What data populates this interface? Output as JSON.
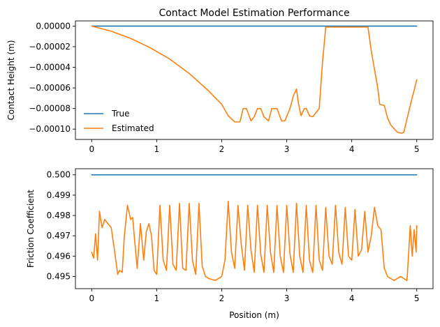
{
  "figure": {
    "title": "Contact Model Estimation Performance"
  },
  "chart_data": [
    {
      "type": "line",
      "title": "Contact Model Estimation Performance",
      "xlabel": "",
      "ylabel": "Contact Height (m)",
      "xlim": [
        -0.25,
        5.25
      ],
      "ylim": [
        -0.00011,
        5e-06
      ],
      "xticks": [
        0,
        1,
        2,
        3,
        4,
        5
      ],
      "xtick_labels": [
        "0",
        "1",
        "2",
        "3",
        "4",
        "5"
      ],
      "yticks": [
        0,
        -2e-05,
        -4e-05,
        -6e-05,
        -8e-05,
        -0.0001
      ],
      "ytick_labels": [
        "0.00000",
        "−0.00002",
        "−0.00004",
        "−0.00006",
        "−0.00008",
        "−0.00010"
      ],
      "grid": false,
      "legend": "lower-left",
      "series": [
        {
          "name": "True",
          "color": "#1f77b4",
          "x": [
            0,
            5
          ],
          "y": [
            0,
            0
          ]
        },
        {
          "name": "Estimated",
          "color": "#ff7f0e",
          "x": [
            0.0,
            0.3,
            0.6,
            0.9,
            1.2,
            1.5,
            1.8,
            2.0,
            2.1,
            2.2,
            2.28,
            2.33,
            2.38,
            2.45,
            2.5,
            2.55,
            2.6,
            2.65,
            2.72,
            2.77,
            2.8,
            2.85,
            2.92,
            2.97,
            3.05,
            3.1,
            3.15,
            3.18,
            3.22,
            3.27,
            3.3,
            3.35,
            3.4,
            3.5,
            3.55,
            3.6,
            3.8,
            4.0,
            4.1,
            4.25,
            4.3,
            4.4,
            4.43,
            4.5,
            4.55,
            4.6,
            4.7,
            4.77,
            4.8,
            4.9,
            5.0
          ],
          "y": [
            0,
            -5e-06,
            -1.2e-05,
            -2.1e-05,
            -3.2e-05,
            -4.6e-05,
            -6.3e-05,
            -7.6e-05,
            -8.7e-05,
            -9.3e-05,
            -9.3e-05,
            -8e-05,
            -8e-05,
            -9.2e-05,
            -8.8e-05,
            -8e-05,
            -8e-05,
            -8.8e-05,
            -9.2e-05,
            -8e-05,
            -8e-05,
            -8e-05,
            -9.2e-05,
            -9.2e-05,
            -8e-05,
            -6.8e-05,
            -6.1e-05,
            -7.5e-05,
            -8.7e-05,
            -8e-05,
            -8e-05,
            -8.7e-05,
            -8.8e-05,
            -8e-05,
            -3.5e-05,
            -1e-06,
            -1e-06,
            -1e-06,
            -1e-06,
            -1e-06,
            -2.4e-05,
            -6e-05,
            -7.6e-05,
            -7.7e-05,
            -8.9e-05,
            -9.6e-05,
            -0.000103,
            -0.000104,
            -0.000103,
            -7.7e-05,
            -5.2e-05
          ]
        }
      ]
    },
    {
      "type": "line",
      "title": "",
      "xlabel": "Position (m)",
      "ylabel": "Friction Coefficient",
      "xlim": [
        -0.25,
        5.25
      ],
      "ylim": [
        0.4944,
        0.5003
      ],
      "xticks": [
        0,
        1,
        2,
        3,
        4,
        5
      ],
      "xtick_labels": [
        "0",
        "1",
        "2",
        "3",
        "4",
        "5"
      ],
      "yticks": [
        0.495,
        0.496,
        0.497,
        0.498,
        0.499,
        0.5
      ],
      "ytick_labels": [
        "0.495",
        "0.496",
        "0.497",
        "0.498",
        "0.499",
        "0.500"
      ],
      "grid": false,
      "legend": "none",
      "series": [
        {
          "name": "True",
          "color": "#1f77b4",
          "x": [
            0,
            5
          ],
          "y": [
            0.5,
            0.5
          ]
        },
        {
          "name": "Estimated",
          "color": "#ff7f0e",
          "x": [
            0.0,
            0.03,
            0.06,
            0.09,
            0.12,
            0.16,
            0.2,
            0.25,
            0.3,
            0.35,
            0.4,
            0.43,
            0.47,
            0.5,
            0.55,
            0.6,
            0.63,
            0.66,
            0.7,
            0.75,
            0.8,
            0.84,
            0.88,
            0.92,
            0.96,
            1.0,
            1.05,
            1.1,
            1.15,
            1.2,
            1.25,
            1.3,
            1.35,
            1.4,
            1.45,
            1.5,
            1.55,
            1.6,
            1.65,
            1.7,
            1.75,
            1.8,
            1.9,
            2.0,
            2.05,
            2.1,
            2.15,
            2.2,
            2.25,
            2.3,
            2.35,
            2.4,
            2.45,
            2.5,
            2.55,
            2.6,
            2.65,
            2.7,
            2.75,
            2.8,
            2.85,
            2.9,
            2.95,
            3.0,
            3.05,
            3.1,
            3.15,
            3.2,
            3.25,
            3.3,
            3.35,
            3.4,
            3.45,
            3.5,
            3.55,
            3.6,
            3.65,
            3.7,
            3.75,
            3.8,
            3.85,
            3.9,
            3.95,
            4.0,
            4.05,
            4.1,
            4.15,
            4.2,
            4.25,
            4.3,
            4.35,
            4.4,
            4.45,
            4.5,
            4.55,
            4.6,
            4.65,
            4.7,
            4.75,
            4.8,
            4.85,
            4.9,
            4.93,
            4.96,
            4.99,
            5.0
          ],
          "y": [
            0.4962,
            0.4959,
            0.4971,
            0.4958,
            0.4982,
            0.4974,
            0.4978,
            0.4976,
            0.4974,
            0.4963,
            0.4951,
            0.4953,
            0.4952,
            0.4969,
            0.4985,
            0.4978,
            0.4979,
            0.4968,
            0.4954,
            0.4976,
            0.4958,
            0.4972,
            0.4976,
            0.497,
            0.4953,
            0.4951,
            0.4985,
            0.4958,
            0.4953,
            0.4985,
            0.4956,
            0.4953,
            0.4986,
            0.4954,
            0.4953,
            0.4986,
            0.4958,
            0.4951,
            0.4986,
            0.4955,
            0.495,
            0.4949,
            0.4948,
            0.495,
            0.4958,
            0.4987,
            0.4962,
            0.4954,
            0.4985,
            0.4966,
            0.4953,
            0.4985,
            0.4963,
            0.4952,
            0.4985,
            0.4961,
            0.4952,
            0.4985,
            0.4962,
            0.4952,
            0.4985,
            0.496,
            0.4952,
            0.4985,
            0.4961,
            0.4952,
            0.4986,
            0.496,
            0.4952,
            0.4985,
            0.4958,
            0.4952,
            0.4985,
            0.4958,
            0.4953,
            0.4984,
            0.496,
            0.4956,
            0.4985,
            0.4962,
            0.4956,
            0.4984,
            0.496,
            0.4958,
            0.4983,
            0.496,
            0.4963,
            0.4982,
            0.4962,
            0.497,
            0.4984,
            0.4975,
            0.4973,
            0.4954,
            0.495,
            0.4949,
            0.4948,
            0.4949,
            0.495,
            0.4949,
            0.4948,
            0.4975,
            0.496,
            0.4973,
            0.4962,
            0.4975
          ]
        }
      ]
    }
  ]
}
